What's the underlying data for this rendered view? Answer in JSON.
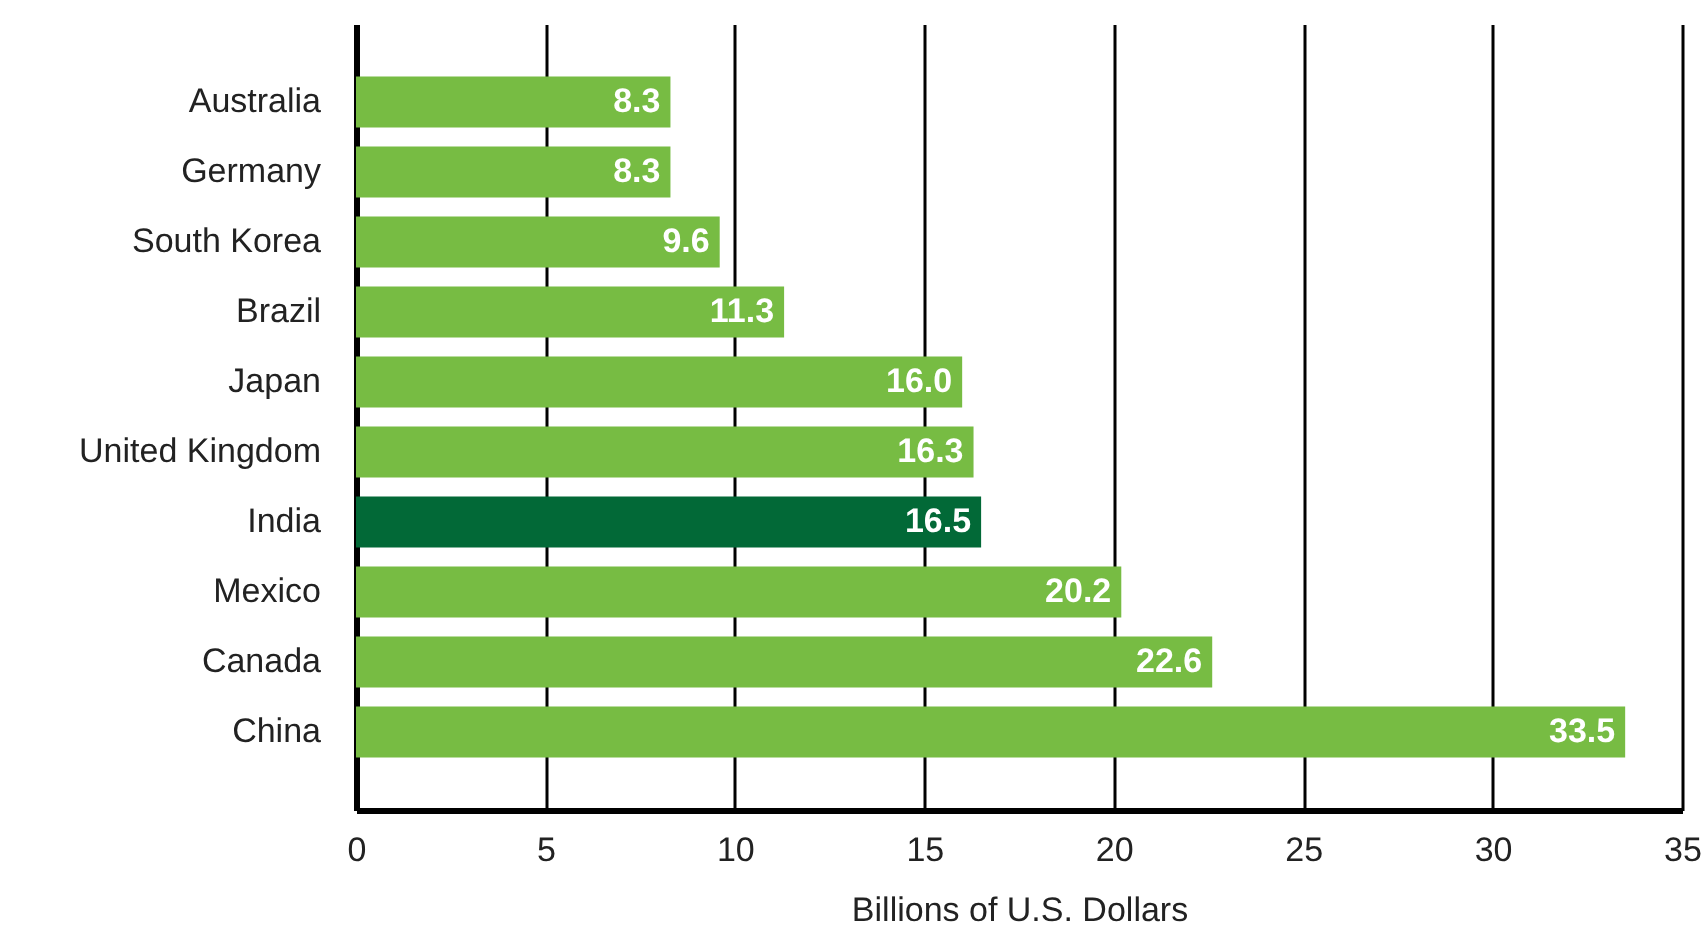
{
  "chart_data": {
    "type": "bar",
    "orientation": "horizontal",
    "xlabel": "Billions of U.S. Dollars",
    "categories": [
      "Australia",
      "Germany",
      "South Korea",
      "Brazil",
      "Japan",
      "United Kingdom",
      "India",
      "Mexico",
      "Canada",
      "China"
    ],
    "values": [
      8.3,
      8.3,
      9.6,
      11.3,
      16.0,
      16.3,
      16.5,
      20.2,
      22.6,
      33.5
    ],
    "colors": [
      "#77bc43",
      "#77bc43",
      "#77bc43",
      "#77bc43",
      "#77bc43",
      "#77bc43",
      "#026937",
      "#77bc43",
      "#77bc43",
      "#77bc43"
    ],
    "value_labels": [
      "8.3",
      "8.3",
      "9.6",
      "11.3",
      "16.0",
      "16.3",
      "16.5",
      "20.2",
      "22.6",
      "33.5"
    ],
    "xlim": [
      0,
      35
    ],
    "xticks": [
      0,
      5,
      10,
      15,
      20,
      25,
      30,
      35
    ],
    "grid": "x"
  }
}
